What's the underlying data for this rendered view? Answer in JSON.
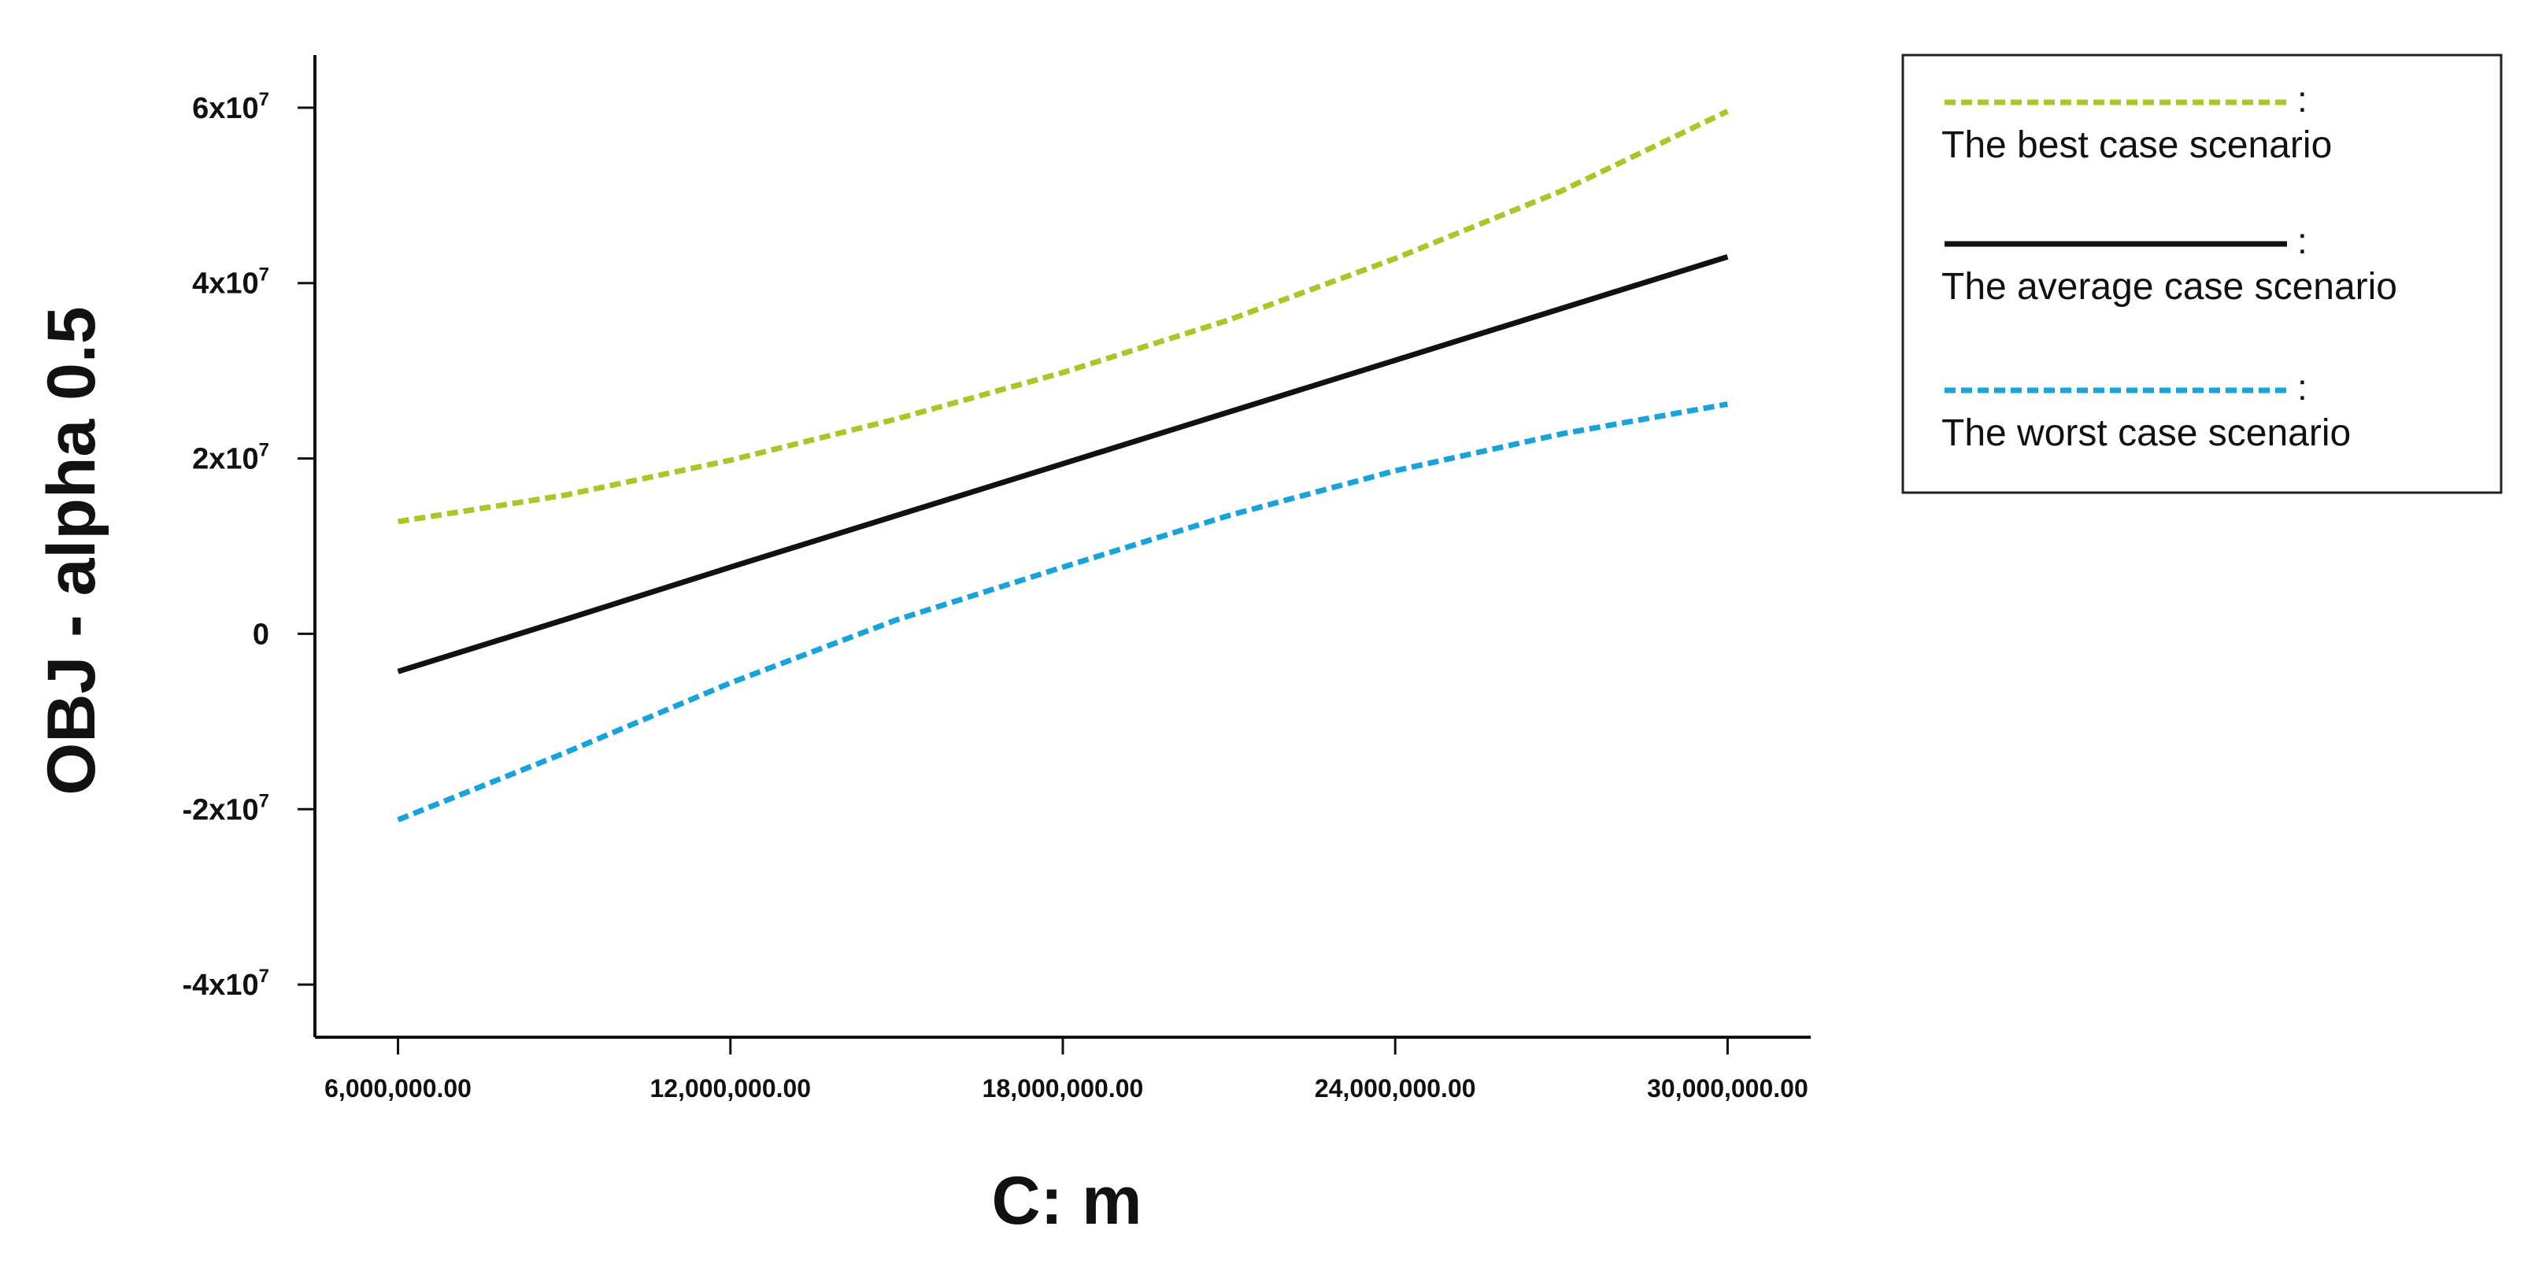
{
  "chart_data": {
    "type": "line",
    "xlabel": "C: m",
    "ylabel": "OBJ - alpha 0.5",
    "x_ticks": [
      6000000,
      12000000,
      18000000,
      24000000,
      30000000
    ],
    "x_tick_labels": [
      "6,000,000.00",
      "12,000,000.00",
      "18,000,000.00",
      "24,000,000.00",
      "30,000,000.00"
    ],
    "y_ticks": [
      -40000000,
      -20000000,
      0,
      20000000,
      40000000,
      60000000
    ],
    "y_tick_labels": [
      {
        "base": "-4x10",
        "exp": "7"
      },
      {
        "base": "-2x10",
        "exp": "7"
      },
      {
        "base": "0",
        "exp": ""
      },
      {
        "base": "2x10",
        "exp": "7"
      },
      {
        "base": "4x10",
        "exp": "7"
      },
      {
        "base": "6x10",
        "exp": "7"
      }
    ],
    "xlim": [
      4500000,
      31500000
    ],
    "ylim": [
      -46000000,
      66000000
    ],
    "grid": false,
    "legend_position": "top-right, outside plot",
    "x": [
      6000000,
      9000000,
      12000000,
      15000000,
      18000000,
      21000000,
      24000000,
      27000000,
      30000000
    ],
    "series": [
      {
        "name": "The best case scenario",
        "style": "dashed",
        "color": "#a8c82a",
        "values": [
          12800000,
          15800000,
          19800000,
          24500000,
          29800000,
          35800000,
          42800000,
          50500000,
          59600000
        ]
      },
      {
        "name": "The average case scenario",
        "style": "solid",
        "color": "#111111",
        "values": [
          -4300000,
          1600000,
          7600000,
          13500000,
          19400000,
          25300000,
          31200000,
          37100000,
          43000000
        ]
      },
      {
        "name": "The worst case scenario",
        "style": "dashed",
        "color": "#1aa3d9",
        "values": [
          -21200000,
          -13600000,
          -5600000,
          1600000,
          7600000,
          13500000,
          18600000,
          22800000,
          26200000
        ]
      }
    ],
    "legend_separator": ":"
  }
}
